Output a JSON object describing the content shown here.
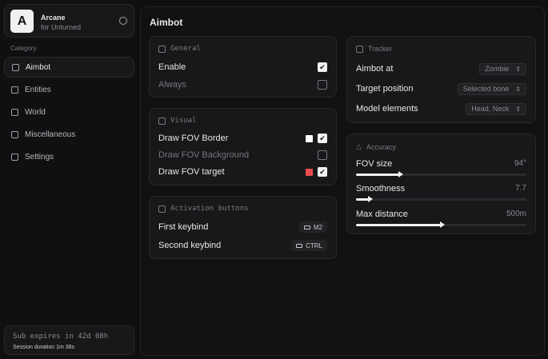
{
  "app": {
    "logo_letter": "A",
    "name": "Arcane",
    "subtitle": "for Unturned"
  },
  "sidebar": {
    "category_label": "Category",
    "items": [
      {
        "label": "Aimbot",
        "icon": "crosshair-icon",
        "active": true
      },
      {
        "label": "Entities",
        "icon": "scan-icon"
      },
      {
        "label": "World",
        "icon": "cube-icon"
      },
      {
        "label": "Miscellaneous",
        "icon": "grid-icon"
      },
      {
        "label": "Settings",
        "icon": "gear-icon"
      }
    ],
    "footer": {
      "sub": "Sub expires in 42d 08h",
      "session": "Session duration 1m 38s"
    }
  },
  "main": {
    "title": "Aimbot",
    "general": {
      "title": "General",
      "rows": [
        {
          "label": "Enable",
          "checked": true
        },
        {
          "label": "Always",
          "checked": false
        }
      ]
    },
    "visual": {
      "title": "Visual",
      "rows": [
        {
          "label": "Draw FOV Border",
          "checked": true,
          "color": "#ffffff"
        },
        {
          "label": "Draw FOV Background",
          "checked": false
        },
        {
          "label": "Draw FOV target",
          "checked": true,
          "color": "#e84c4c"
        }
      ]
    },
    "activation": {
      "title": "Activation buttons",
      "rows": [
        {
          "label": "First keybind",
          "key": "M2",
          "icon": "mouse-icon"
        },
        {
          "label": "Second keybind",
          "key": "CTRL",
          "icon": "keyboard-icon"
        }
      ]
    },
    "tracker": {
      "title": "Tracker",
      "rows": [
        {
          "label": "Aimbot at",
          "value": "Zombie"
        },
        {
          "label": "Target position",
          "value": "Selected bone"
        },
        {
          "label": "Model elements",
          "value": "Head, Neck"
        }
      ]
    },
    "accuracy": {
      "title": "Accuracy",
      "sliders": [
        {
          "label": "FOV size",
          "value": "94°",
          "percent": 26
        },
        {
          "label": "Smoothness",
          "value": "7.7",
          "percent": 8
        },
        {
          "label": "Max distance",
          "value": "500m",
          "percent": 50
        }
      ]
    }
  }
}
